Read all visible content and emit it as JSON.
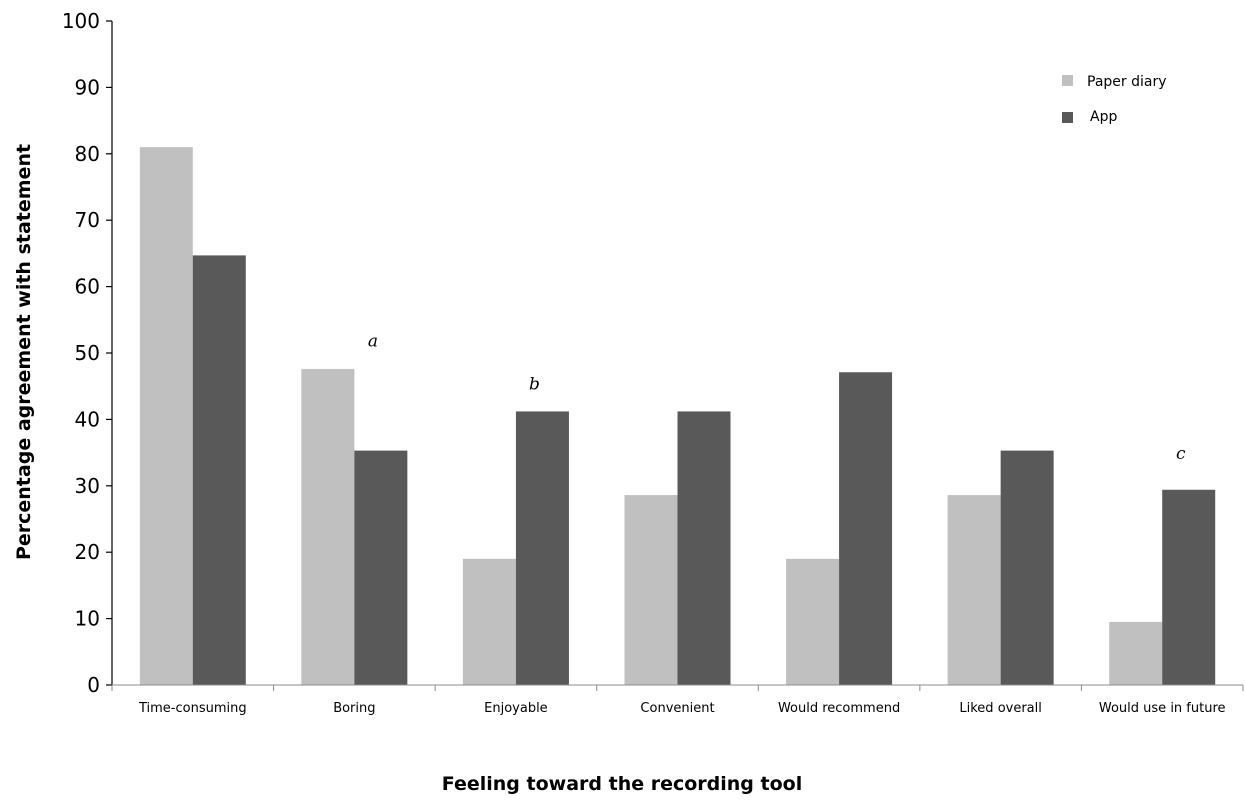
{
  "chart_data": {
    "type": "bar",
    "title": "",
    "xlabel": "Feeling toward the recording tool",
    "ylabel": "Percentage agreement with statement",
    "ylim": [
      0,
      100
    ],
    "yticks": [
      0,
      10,
      20,
      30,
      40,
      50,
      60,
      70,
      80,
      90,
      100
    ],
    "grid": false,
    "legend_position": "top-right",
    "categories": [
      "Time-consuming",
      "Boring",
      "Enjoyable",
      "Convenient",
      "Would recommend",
      "Liked overall",
      "Would use in future"
    ],
    "series": [
      {
        "name": "Paper diary",
        "color": "#c0c0c0",
        "values": [
          81,
          47.6,
          19,
          28.6,
          19,
          28.6,
          9.5
        ]
      },
      {
        "name": "App",
        "color": "#595959",
        "values": [
          64.7,
          35.3,
          41.2,
          41.2,
          47.1,
          35.3,
          29.4
        ]
      }
    ],
    "annotations": [
      {
        "text": "a",
        "category": "Boring",
        "y": 51
      },
      {
        "text": "b",
        "category": "Enjoyable",
        "y": 44.5
      },
      {
        "text": "c",
        "category": "Would use in future",
        "y": 34
      }
    ]
  }
}
